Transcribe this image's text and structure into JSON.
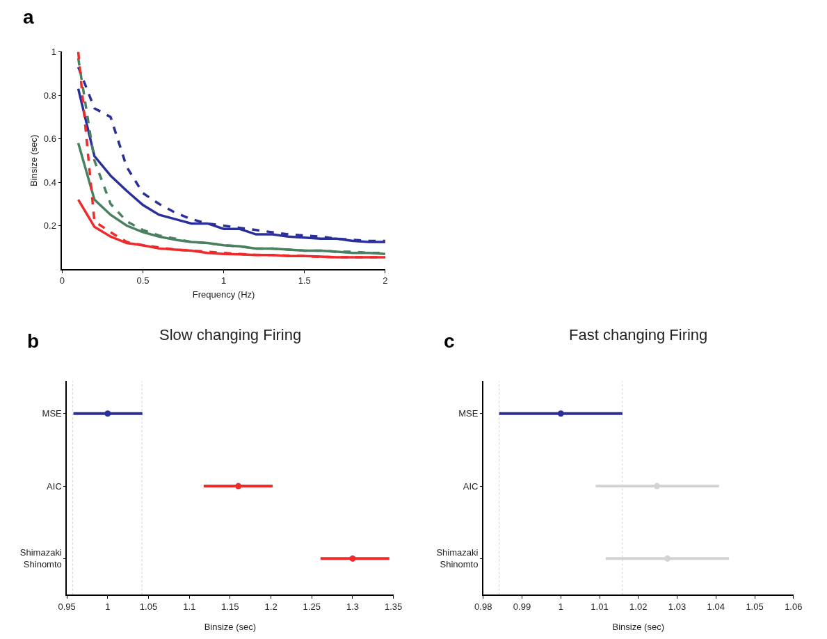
{
  "chart_data": [
    {
      "type": "line",
      "annotations": [
        "a"
      ],
      "xlabel": "Frequency (Hz)",
      "ylabel": "Binsize (sec)",
      "xlim": [
        0,
        2
      ],
      "xticks": [
        0,
        0.5,
        1,
        1.5,
        2
      ],
      "ylim": [
        0,
        1
      ],
      "yticks": [
        0.2,
        0.4,
        0.6,
        0.8,
        1
      ],
      "marker": "none",
      "x": [
        0.1,
        0.2,
        0.3,
        0.4,
        0.5,
        0.6,
        0.7,
        0.8,
        0.9,
        1.0,
        1.1,
        1.2,
        1.3,
        1.4,
        1.5,
        1.6,
        1.7,
        1.8,
        1.9,
        2.0
      ],
      "series": [
        {
          "color": "#2b2f9a",
          "line_style": "solid",
          "values": [
            0.83,
            0.52,
            0.43,
            0.36,
            0.295,
            0.25,
            0.23,
            0.21,
            0.21,
            0.185,
            0.185,
            0.16,
            0.16,
            0.15,
            0.145,
            0.14,
            0.14,
            0.13,
            0.125,
            0.125
          ]
        },
        {
          "color": "#2b2f9a",
          "line_style": "dashed",
          "values": [
            0.93,
            0.74,
            0.7,
            0.47,
            0.35,
            0.3,
            0.26,
            0.23,
            0.21,
            0.2,
            0.19,
            0.18,
            0.17,
            0.16,
            0.155,
            0.15,
            0.14,
            0.135,
            0.13,
            0.13
          ]
        },
        {
          "color": "#4a8060",
          "line_style": "solid",
          "values": [
            0.58,
            0.32,
            0.25,
            0.2,
            0.17,
            0.15,
            0.135,
            0.125,
            0.12,
            0.11,
            0.105,
            0.095,
            0.095,
            0.09,
            0.085,
            0.085,
            0.08,
            0.075,
            0.075,
            0.07
          ]
        },
        {
          "color": "#4a8060",
          "line_style": "dashed",
          "values": [
            0.97,
            0.5,
            0.3,
            0.22,
            0.18,
            0.155,
            0.14,
            0.125,
            0.12,
            0.11,
            0.105,
            0.095,
            0.095,
            0.09,
            0.085,
            0.085,
            0.08,
            0.08,
            0.075,
            0.075
          ]
        },
        {
          "color": "#ee2a2b",
          "line_style": "solid",
          "values": [
            0.32,
            0.195,
            0.15,
            0.12,
            0.11,
            0.095,
            0.09,
            0.085,
            0.075,
            0.07,
            0.068,
            0.065,
            0.065,
            0.06,
            0.06,
            0.058,
            0.055,
            0.055,
            0.055,
            0.055
          ]
        },
        {
          "color": "#ee2a2b",
          "line_style": "dashed",
          "values": [
            1.0,
            0.22,
            0.17,
            0.125,
            0.11,
            0.1,
            0.09,
            0.085,
            0.08,
            0.075,
            0.07,
            0.066,
            0.065,
            0.062,
            0.06,
            0.057,
            0.055,
            0.055,
            0.055,
            0.055
          ]
        }
      ]
    },
    {
      "type": "scatter",
      "orientation": "horizontal",
      "title": "Slow changing Firing",
      "annotations": [
        "b"
      ],
      "xlabel": "Binsize (sec)",
      "xlim": [
        0.95,
        1.35
      ],
      "xticks": [
        0.95,
        1,
        1.05,
        1.1,
        1.15,
        1.2,
        1.25,
        1.3,
        1.35
      ],
      "marker": "circle",
      "categories": [
        "MSE",
        "AIC",
        "Shimazaki\nShinomto"
      ],
      "values": [
        1.0,
        1.16,
        1.3
      ],
      "errors": [
        [
          0.958,
          1.0425
        ],
        [
          1.1176,
          1.202
        ],
        [
          1.2607,
          1.345
        ]
      ],
      "colors": [
        "#2b2f9a",
        "#ee2a2b",
        "#ee2a2b"
      ],
      "ref_lines": [
        {
          "axis": "x",
          "value": 0.957,
          "color": "#cccccc",
          "line_style": "dotted"
        },
        {
          "axis": "x",
          "value": 1.042,
          "color": "#cccccc",
          "line_style": "dotted"
        }
      ]
    },
    {
      "type": "scatter",
      "orientation": "horizontal",
      "title": "Fast changing Firing",
      "annotations": [
        "c"
      ],
      "xlabel": "Binsize (sec)",
      "xlim": [
        0.98,
        1.06
      ],
      "xticks": [
        0.98,
        0.99,
        1,
        1.01,
        1.02,
        1.03,
        1.04,
        1.05,
        1.06
      ],
      "marker": "circle",
      "categories": [
        "MSE",
        "AIC",
        "Shimazaki\nShinomto"
      ],
      "values": [
        1.0,
        1.0248,
        1.0275
      ],
      "errors": [
        [
          0.9841,
          1.0159
        ],
        [
          1.009,
          1.0408
        ],
        [
          1.0116,
          1.0434
        ]
      ],
      "colors": [
        "#2b2f9a",
        "#d3d3d3",
        "#d3d3d3"
      ],
      "ref_lines": [
        {
          "axis": "x",
          "value": 0.9841,
          "color": "#cccccc",
          "line_style": "dotted"
        },
        {
          "axis": "x",
          "value": 1.0159,
          "color": "#cccccc",
          "line_style": "dotted"
        }
      ]
    }
  ]
}
